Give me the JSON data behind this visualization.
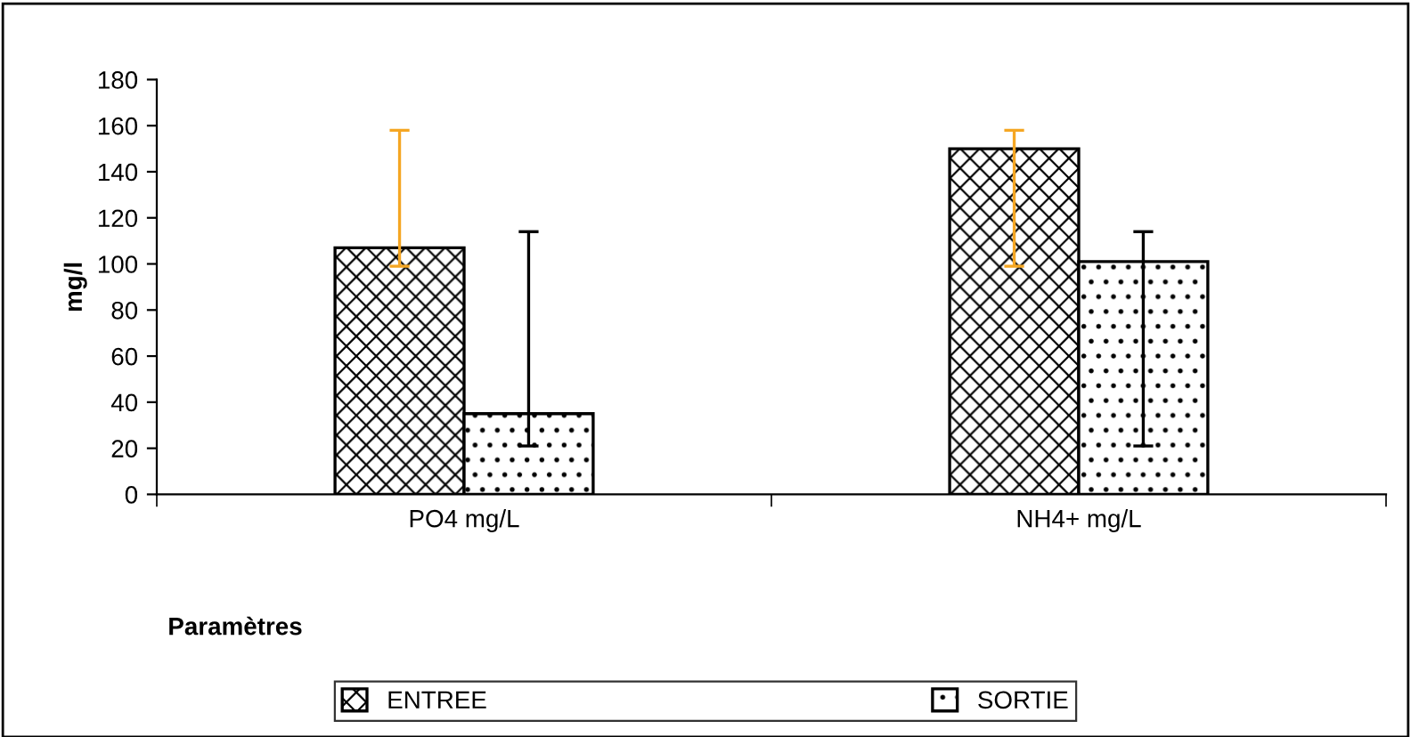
{
  "chart_data": {
    "type": "bar",
    "ylabel": "mg/l",
    "xlabel": "Paramètres",
    "categories": [
      "PO4 mg/L",
      "NH4+ mg/L"
    ],
    "series": [
      {
        "name": "ENTREE",
        "color": "#000000",
        "values": [
          107,
          150
        ],
        "errors": [
          [
            99,
            158
          ],
          [
            99,
            158
          ]
        ]
      },
      {
        "name": "SORTIE",
        "color": "#000000",
        "values": [
          35,
          101
        ],
        "errors": [
          [
            21,
            114
          ],
          [
            21,
            114
          ]
        ]
      }
    ],
    "ylim": [
      0,
      180
    ],
    "yticks": [
      0,
      20,
      40,
      60,
      80,
      100,
      120,
      140,
      160,
      180
    ],
    "grid": false,
    "legend": "bottom"
  }
}
